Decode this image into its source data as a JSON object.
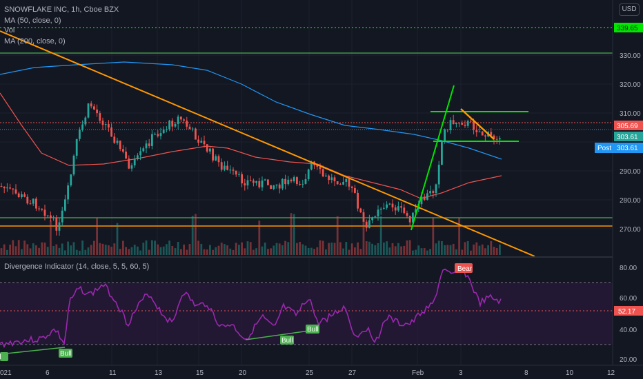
{
  "header": {
    "symbol_line": "SNOWFLAKE INC, 1h, Cboe BZX",
    "ma50": "MA (50, close, 0)",
    "vol": "Vol",
    "ma200": "MA (200, close, 0)",
    "currency_button": "USD"
  },
  "indicator": {
    "title": "Divergence Indicator (14, close, 5, 5, 60, 5)",
    "value_tag": "52.17",
    "labels": {
      "bear": "Bear",
      "bull": "Bull"
    },
    "axis_ticks": [
      "80.00",
      "60.00",
      "40.00",
      "20.00"
    ]
  },
  "price_axis": {
    "ticks": [
      "330.00",
      "320.00",
      "310.00",
      "300.00",
      "290.00",
      "280.00",
      "270.00"
    ],
    "tags": {
      "alert_level": "339.65",
      "ma_red": "305.69",
      "ma_green": "303.61",
      "post_label": "Post",
      "post_value": "303.61"
    }
  },
  "time_axis": {
    "labels": [
      "021",
      "6",
      "11",
      "13",
      "15",
      "20",
      "25",
      "27",
      "Feb",
      "3",
      "8",
      "10",
      "12"
    ]
  },
  "colors": {
    "background": "#131722",
    "up": "#26a69a",
    "down": "#ef5350",
    "ma50": "#ef5350",
    "ma200": "#2196f3",
    "trendline": "#ff9800",
    "drawing_green": "#00e600",
    "oscillator": "#9c27b0"
  }
}
